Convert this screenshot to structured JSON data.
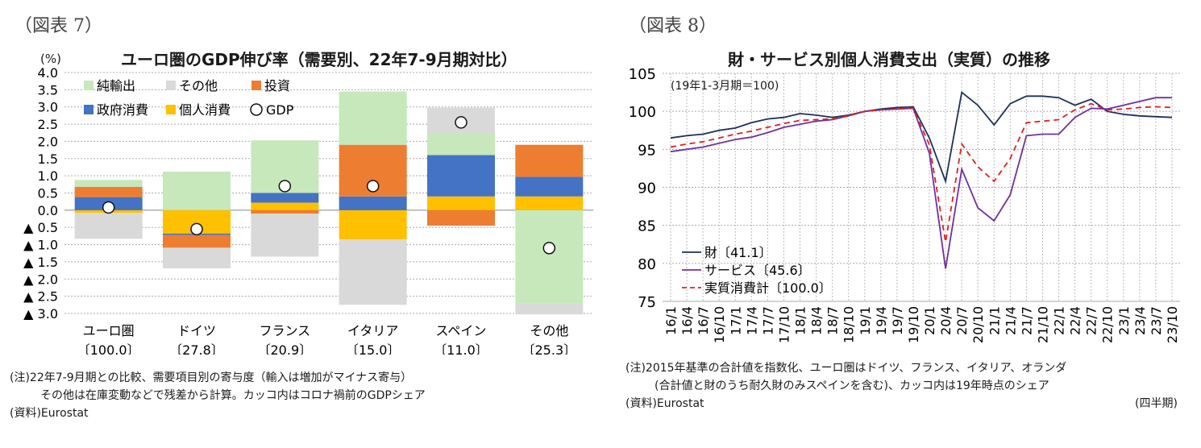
{
  "left": {
    "fig_label": "（図表 7）",
    "title": "ユーロ圏のGDP伸び率（需要別、22年7-9月期対比）",
    "unit": "(%)",
    "notes": [
      "(注)22年7-9月期との比較、需要項目別の寄与度（輸入は増加がマイナス寄与）",
      "その他は在庫変動などで残差から計算。カッコ内はコロナ禍前のGDPシェア",
      "(資料)Eurostat"
    ]
  },
  "right": {
    "fig_label": "（図表 8）",
    "title": "財・サービス別個人消費支出（実質）の推移",
    "base_note": "(19年1-3月期＝100)",
    "period_note": "(四半期)",
    "notes": [
      "(注)2015年基準の合計値を指数化、ユーロ圏はドイツ、フランス、イタリア、オランダ",
      "(合計値と財のうち耐久財のみスペインを含む)、カッコ内は19年時点のシェア",
      "(資料)Eurostat"
    ]
  },
  "chart_data": [
    {
      "type": "bar",
      "stacked": true,
      "title": "ユーロ圏のGDP伸び率（需要別、22年7-9月期対比）",
      "ylabel": "(%)",
      "ylim": [
        -3.0,
        4.0
      ],
      "yticks": [
        4.0,
        3.5,
        3.0,
        2.5,
        2.0,
        1.5,
        1.0,
        0.5,
        0.0,
        -0.5,
        -1.0,
        -1.5,
        -2.0,
        -2.5,
        -3.0
      ],
      "ytick_labels": [
        "4.0",
        "3.5",
        "3.0",
        "2.5",
        "2.0",
        "1.5",
        "1.0",
        "0.5",
        "0.0",
        "▲ 0.5",
        "▲ 1.0",
        "▲ 1.5",
        "▲ 2.0",
        "▲ 2.5",
        "▲ 3.0"
      ],
      "categories": [
        "ユーロ圏",
        "ドイツ",
        "フランス",
        "イタリア",
        "スペイン",
        "その他"
      ],
      "category_shares": [
        "〔100.0〕",
        "〔27.8〕",
        "〔20.9〕",
        "〔15.0〕",
        "〔11.0〕",
        "〔25.3〕"
      ],
      "series": [
        {
          "name": "個人消費",
          "color": "#ffc000",
          "values": [
            -0.08,
            -0.68,
            0.22,
            -0.85,
            0.4,
            0.4
          ]
        },
        {
          "name": "政府消費",
          "color": "#4472c4",
          "values": [
            0.38,
            -0.04,
            0.28,
            0.4,
            1.2,
            0.57
          ]
        },
        {
          "name": "投資",
          "color": "#ed7d31",
          "values": [
            0.3,
            -0.37,
            -0.1,
            1.5,
            -0.45,
            0.93
          ]
        },
        {
          "name": "純輸出",
          "color": "#c6e8bb",
          "values": [
            0.2,
            1.12,
            1.53,
            1.55,
            0.63,
            -2.7
          ]
        },
        {
          "name": "その他",
          "color": "#d9d9d9",
          "values": [
            -0.75,
            -0.6,
            -1.25,
            -1.9,
            0.75,
            -0.33
          ]
        }
      ],
      "gdp": {
        "name": "GDP",
        "values": [
          0.08,
          -0.55,
          0.7,
          0.7,
          2.55,
          -1.1
        ]
      },
      "legend": [
        "純輸出",
        "その他",
        "投資",
        "政府消費",
        "個人消費",
        "GDP"
      ]
    },
    {
      "type": "line",
      "title": "財・サービス別個人消費支出（実質）の推移",
      "ylim": [
        75,
        105
      ],
      "yticks": [
        105,
        100,
        95,
        90,
        85,
        80,
        75
      ],
      "x": [
        "16/1",
        "16/4",
        "16/7",
        "16/10",
        "17/1",
        "17/4",
        "17/7",
        "17/10",
        "18/1",
        "18/4",
        "18/7",
        "18/10",
        "19/1",
        "19/4",
        "19/7",
        "19/10",
        "20/1",
        "20/4",
        "20/7",
        "20/10",
        "21/1",
        "21/4",
        "21/7",
        "21/10",
        "22/1",
        "22/4",
        "22/7",
        "22/10",
        "23/1",
        "23/4",
        "23/7",
        "23/10"
      ],
      "series": [
        {
          "name": "財〔41.1〕",
          "color": "#1f2f5c",
          "dash": "solid",
          "values": [
            96.5,
            96.8,
            97.0,
            97.5,
            97.8,
            98.5,
            99.0,
            99.2,
            99.7,
            99.5,
            99.2,
            99.5,
            100.0,
            100.3,
            100.5,
            100.6,
            96.5,
            90.8,
            102.5,
            100.8,
            98.2,
            101.0,
            102.0,
            102.0,
            101.8,
            100.8,
            101.6,
            100.0,
            99.6,
            99.4,
            99.3,
            99.2
          ]
        },
        {
          "name": "サービス〔45.6〕",
          "color": "#7030a0",
          "dash": "solid",
          "values": [
            94.7,
            95.0,
            95.3,
            95.8,
            96.3,
            96.6,
            97.2,
            97.9,
            98.3,
            98.7,
            98.9,
            99.4,
            100.0,
            100.2,
            100.3,
            100.4,
            94.5,
            79.3,
            92.4,
            87.3,
            85.6,
            89.0,
            96.8,
            97.0,
            97.0,
            99.2,
            100.4,
            100.3,
            100.8,
            101.3,
            101.8,
            101.8
          ]
        },
        {
          "name": "実質消費計〔100.0〕",
          "color": "#e02020",
          "dash": "dashed",
          "values": [
            95.3,
            95.7,
            96.0,
            96.5,
            97.0,
            97.4,
            97.9,
            98.4,
            98.8,
            98.9,
            99.0,
            99.4,
            100.0,
            100.2,
            100.3,
            100.4,
            95.6,
            82.8,
            95.7,
            92.7,
            90.8,
            93.8,
            98.5,
            98.7,
            98.9,
            100.2,
            101.0,
            100.2,
            100.3,
            100.5,
            100.6,
            100.5
          ]
        }
      ],
      "legend": [
        "財〔41.1〕",
        "サービス〔45.6〕",
        "実質消費計〔100.0〕"
      ],
      "xlabel": "(四半期)"
    }
  ]
}
